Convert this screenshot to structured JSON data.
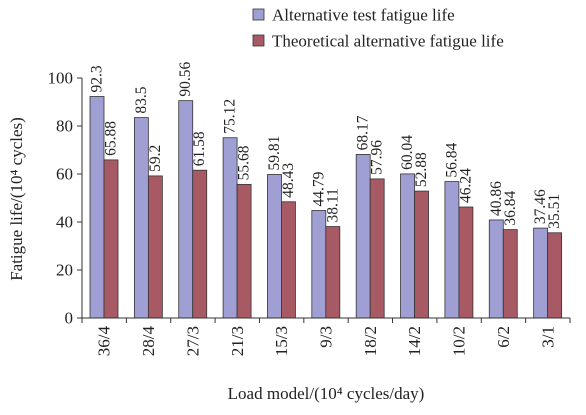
{
  "chart_data": {
    "type": "bar",
    "xlabel": "Load model/(10⁴ cycles/day)",
    "ylabel": "Fatigue life/(10⁴ cycles)",
    "ylim": [
      0,
      100
    ],
    "yticks": [
      0,
      20,
      40,
      60,
      80,
      100
    ],
    "grid": false,
    "legend_position": "top-right",
    "categories": [
      "36/4",
      "28/4",
      "27/3",
      "21/3",
      "15/3",
      "9/3",
      "18/2",
      "14/2",
      "10/2",
      "6/2",
      "3/1"
    ],
    "series": [
      {
        "name": "Alternative test fatigue life",
        "color": "#9f9fd4",
        "values": [
          92.3,
          83.5,
          90.56,
          75.12,
          59.81,
          44.79,
          68.17,
          60.04,
          56.84,
          40.86,
          37.46
        ],
        "labels": [
          "92.3",
          "83.5",
          "90.56",
          "75.12",
          "59.81",
          "44.79",
          "68.17",
          "60.04",
          "56.84",
          "40.86",
          "37.46"
        ]
      },
      {
        "name": "Theoretical alternative fatigue life",
        "color": "#a85a64",
        "values": [
          65.88,
          59.2,
          61.58,
          55.68,
          48.43,
          38.11,
          57.96,
          52.88,
          46.24,
          36.84,
          35.51
        ],
        "labels": [
          "65.88",
          "59.2",
          "61.58",
          "55.68",
          "48.43",
          "38.11",
          "57.96",
          "52.88",
          "46.24",
          "36.84",
          "35.51"
        ]
      }
    ]
  }
}
